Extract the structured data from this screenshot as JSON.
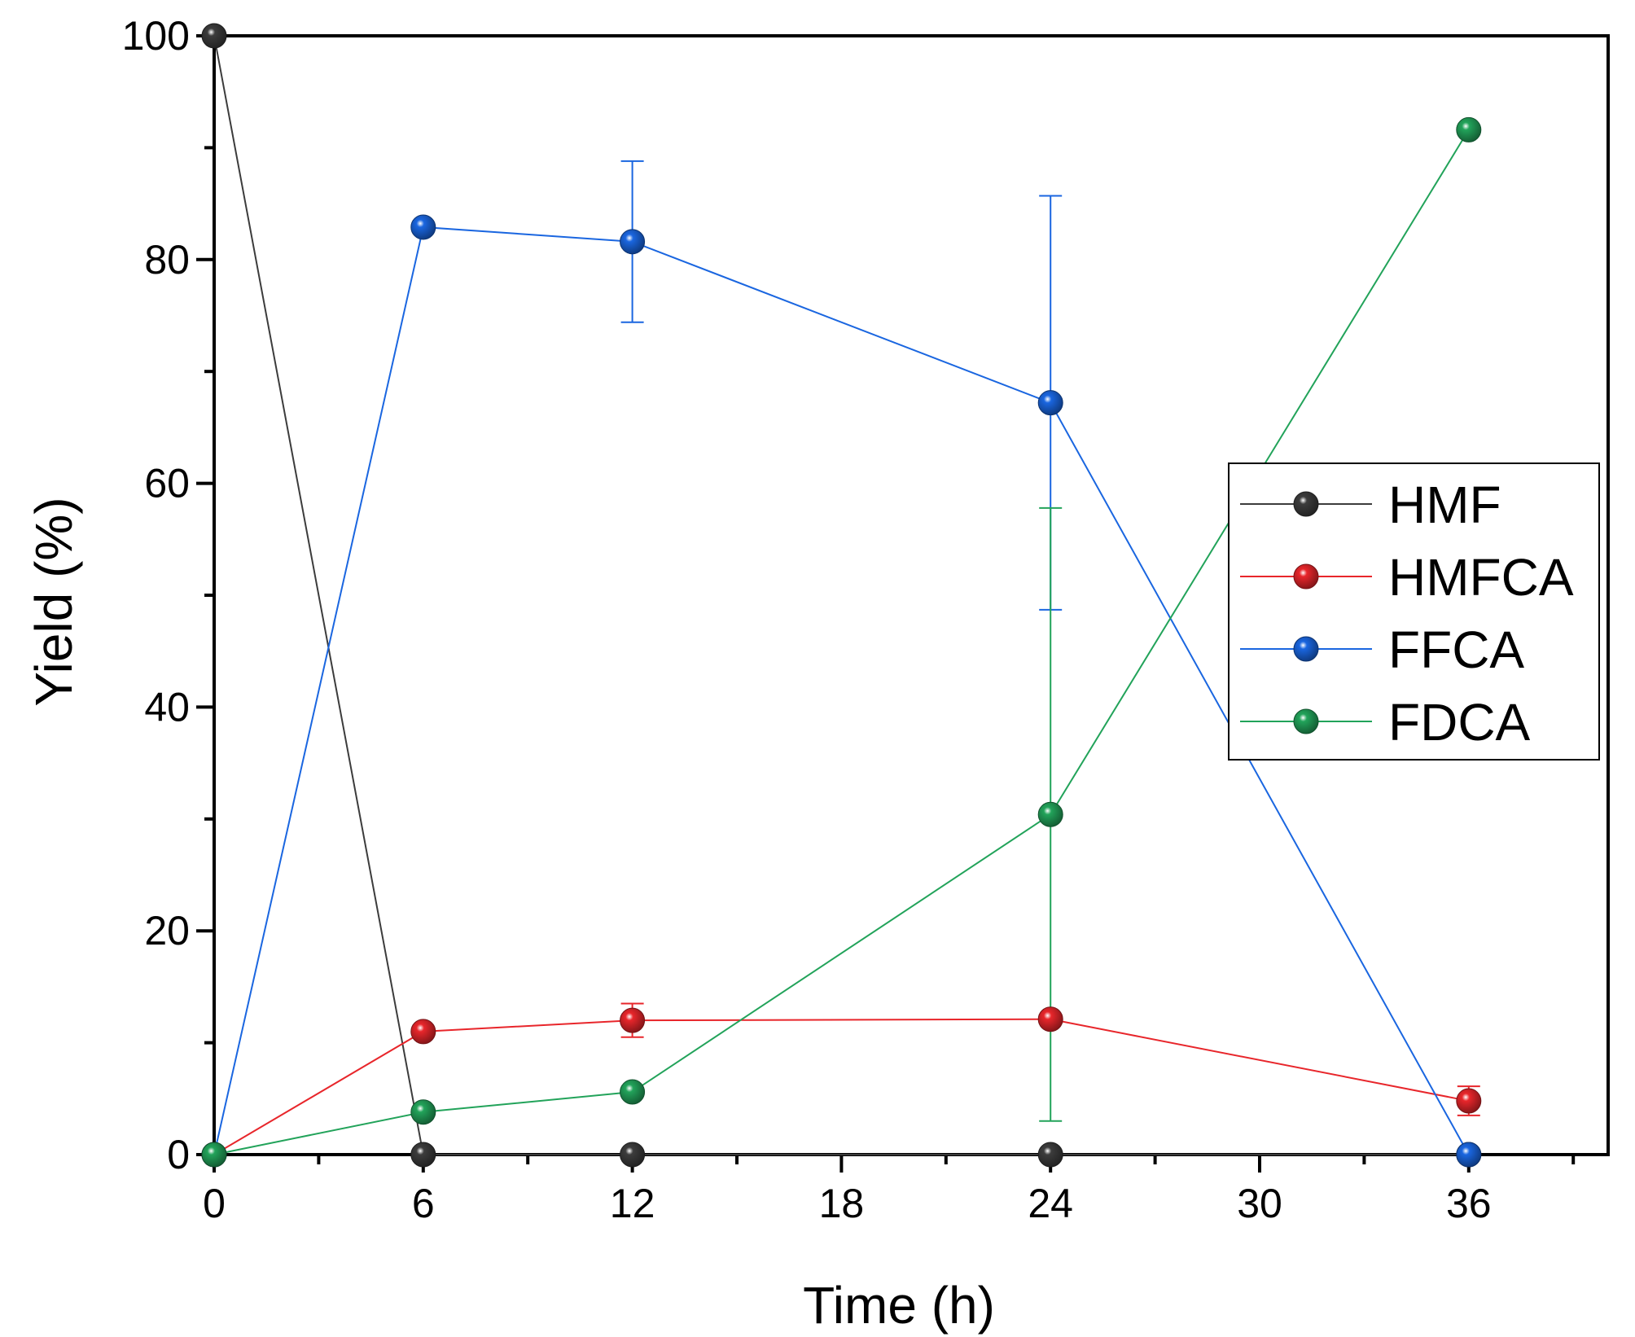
{
  "chart_data": {
    "type": "line",
    "title": "",
    "xlabel": "Time (h)",
    "ylabel": "Yield (%)",
    "xlim": [
      0,
      40
    ],
    "ylim": [
      0,
      100
    ],
    "xticks": [
      0,
      6,
      12,
      18,
      24,
      30,
      36
    ],
    "xminor_ticks": [
      3,
      9,
      15,
      21,
      27,
      33,
      39
    ],
    "yticks": [
      0,
      20,
      40,
      60,
      80,
      100
    ],
    "yminor_ticks": [
      10,
      30,
      50,
      70,
      90
    ],
    "grid": false,
    "legend_position": "center-right",
    "x": [
      0,
      6,
      12,
      24,
      36
    ],
    "series": [
      {
        "name": "HMF",
        "color": "#3c3c3c",
        "values": [
          100,
          0,
          0,
          0,
          0
        ],
        "errors": [
          null,
          null,
          null,
          null,
          null
        ]
      },
      {
        "name": "HMFCA",
        "color": "#e8262b",
        "values": [
          0,
          11,
          12,
          12.1,
          4.8
        ],
        "errors": [
          null,
          null,
          1.5,
          null,
          1.3
        ]
      },
      {
        "name": "FFCA",
        "color": "#1a66e0",
        "values": [
          0,
          82.9,
          81.6,
          67.2,
          0
        ],
        "errors": [
          null,
          null,
          7.2,
          18.5,
          null
        ]
      },
      {
        "name": "FDCA",
        "color": "#22a35a",
        "values": [
          0,
          3.8,
          5.6,
          30.4,
          91.6
        ],
        "errors": [
          null,
          null,
          null,
          27.4,
          null
        ]
      }
    ]
  }
}
